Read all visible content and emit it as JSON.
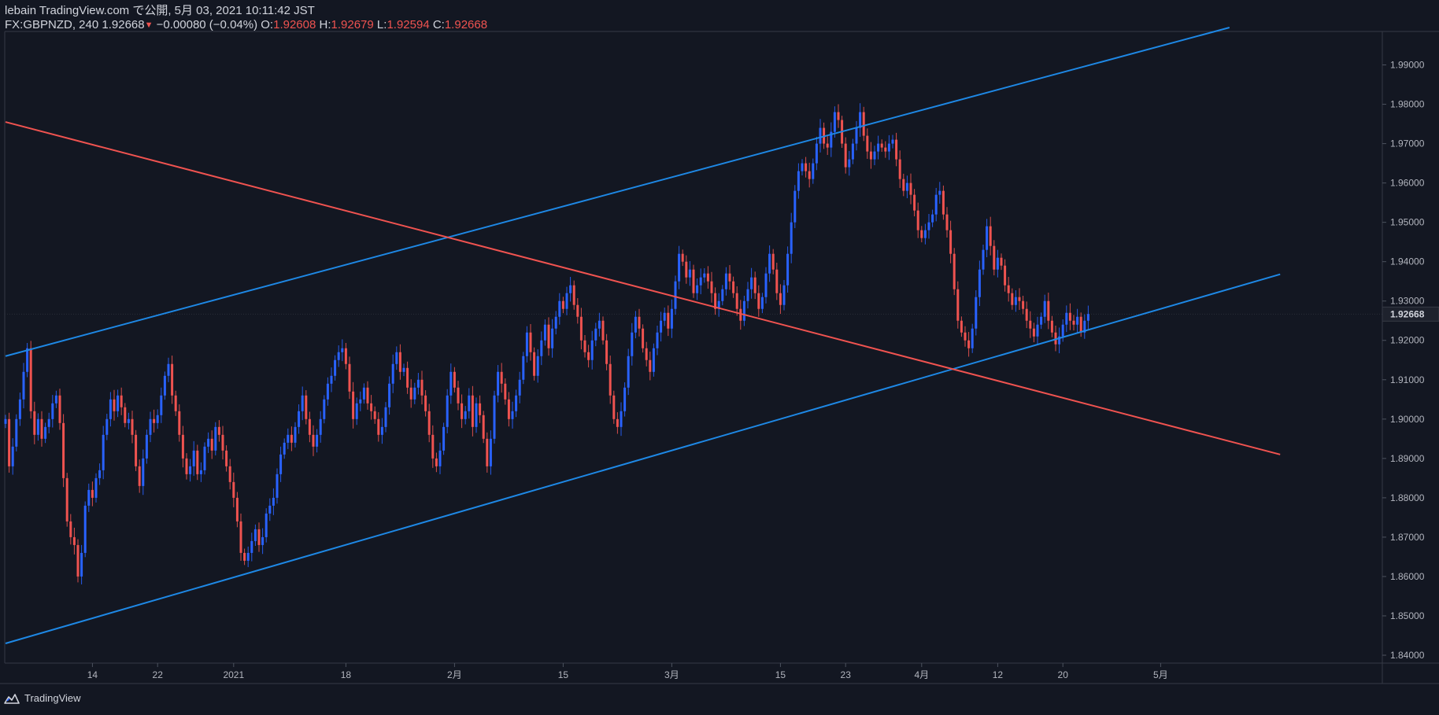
{
  "header": {
    "line1": "lebain TradingView.com で公開, 5月 03, 2021 10:11:42 JST",
    "symbol_prefix": "FX:GBPNZD, 240 1.92668",
    "change_arrow": "▼",
    "change": "−0.00080 (−0.04%)",
    "o_label": "O:",
    "o_value": "1.92608",
    "h_label": "H:",
    "h_value": "1.92679",
    "l_label": "L:",
    "l_value": "1.92594",
    "c_label": "C:",
    "c_value": "1.92668"
  },
  "footer": {
    "brand": "TradingView"
  },
  "colors": {
    "background": "#131722",
    "up": "#2962ff",
    "down": "#ef5350",
    "channel_line": "#1e88e5",
    "resistance_line": "#f05350",
    "text": "#d1d4dc"
  },
  "chart_data": {
    "type": "candlestick",
    "symbol": "FX:GBPNZD",
    "interval": "240",
    "ylim": [
      1.838,
      1.9985
    ],
    "y_ticks": [
      "1.84000",
      "1.85000",
      "1.86000",
      "1.87000",
      "1.88000",
      "1.89000",
      "1.90000",
      "1.91000",
      "1.92000",
      "1.93000",
      "1.94000",
      "1.95000",
      "1.96000",
      "1.97000",
      "1.98000",
      "1.99000"
    ],
    "x_ticks": [
      {
        "label": "14",
        "bar": 24
      },
      {
        "label": "22",
        "bar": 42
      },
      {
        "label": "2021",
        "bar": 63
      },
      {
        "label": "18",
        "bar": 94
      },
      {
        "label": "2月",
        "bar": 124
      },
      {
        "label": "15",
        "bar": 154
      },
      {
        "label": "3月",
        "bar": 184
      },
      {
        "label": "15",
        "bar": 214
      },
      {
        "label": "23",
        "bar": 232
      },
      {
        "label": "4月",
        "bar": 253
      },
      {
        "label": "12",
        "bar": 274
      },
      {
        "label": "20",
        "bar": 292
      },
      {
        "label": "5月",
        "bar": 319
      }
    ],
    "last_price": "1.92668",
    "closes": [
      1.9,
      1.888,
      1.893,
      1.9,
      1.905,
      1.912,
      1.918,
      1.902,
      1.896,
      1.9,
      1.895,
      1.898,
      1.9,
      1.904,
      1.906,
      1.899,
      1.885,
      1.874,
      1.87,
      1.868,
      1.86,
      1.866,
      1.878,
      1.882,
      1.88,
      1.885,
      1.887,
      1.896,
      1.9,
      1.905,
      1.902,
      1.906,
      1.903,
      1.899,
      1.9,
      1.896,
      1.888,
      1.883,
      1.89,
      1.896,
      1.9,
      1.899,
      1.901,
      1.906,
      1.911,
      1.914,
      1.906,
      1.902,
      1.896,
      1.89,
      1.886,
      1.888,
      1.892,
      1.886,
      1.887,
      1.893,
      1.895,
      1.892,
      1.898,
      1.896,
      1.892,
      1.888,
      1.884,
      1.88,
      1.874,
      1.866,
      1.864,
      1.866,
      1.869,
      1.872,
      1.868,
      1.87,
      1.876,
      1.878,
      1.88,
      1.886,
      1.891,
      1.894,
      1.896,
      1.894,
      1.898,
      1.902,
      1.906,
      1.9,
      1.896,
      1.893,
      1.896,
      1.9,
      1.905,
      1.909,
      1.911,
      1.915,
      1.917,
      1.918,
      1.914,
      1.907,
      1.9,
      1.904,
      1.905,
      1.908,
      1.904,
      1.902,
      1.9,
      1.896,
      1.898,
      1.903,
      1.909,
      1.914,
      1.917,
      1.912,
      1.913,
      1.908,
      1.905,
      1.908,
      1.91,
      1.906,
      1.902,
      1.896,
      1.89,
      1.888,
      1.892,
      1.898,
      1.906,
      1.912,
      1.908,
      1.904,
      1.9,
      1.902,
      1.906,
      1.898,
      1.904,
      1.901,
      1.895,
      1.888,
      1.895,
      1.906,
      1.912,
      1.909,
      1.905,
      1.9,
      1.902,
      1.906,
      1.91,
      1.916,
      1.922,
      1.917,
      1.911,
      1.916,
      1.92,
      1.924,
      1.918,
      1.923,
      1.926,
      1.93,
      1.928,
      1.932,
      1.934,
      1.929,
      1.926,
      1.92,
      1.917,
      1.915,
      1.92,
      1.923,
      1.925,
      1.92,
      1.914,
      1.906,
      1.9,
      1.898,
      1.902,
      1.908,
      1.916,
      1.922,
      1.926,
      1.923,
      1.918,
      1.915,
      1.912,
      1.918,
      1.922,
      1.925,
      1.927,
      1.923,
      1.928,
      1.935,
      1.942,
      1.94,
      1.936,
      1.938,
      1.932,
      1.934,
      1.936,
      1.937,
      1.935,
      1.932,
      1.928,
      1.93,
      1.933,
      1.937,
      1.935,
      1.932,
      1.928,
      1.925,
      1.93,
      1.933,
      1.936,
      1.932,
      1.928,
      1.931,
      1.937,
      1.942,
      1.938,
      1.932,
      1.929,
      1.934,
      1.942,
      1.95,
      1.958,
      1.963,
      1.965,
      1.963,
      1.961,
      1.965,
      1.97,
      1.974,
      1.97,
      1.969,
      1.973,
      1.978,
      1.976,
      1.97,
      1.964,
      1.966,
      1.97,
      1.974,
      1.978,
      1.972,
      1.968,
      1.966,
      1.968,
      1.97,
      1.969,
      1.968,
      1.97,
      1.971,
      1.966,
      1.961,
      1.958,
      1.96,
      1.957,
      1.953,
      1.948,
      1.946,
      1.948,
      1.95,
      1.952,
      1.957,
      1.958,
      1.952,
      1.948,
      1.942,
      1.933,
      1.925,
      1.922,
      1.92,
      1.918,
      1.923,
      1.931,
      1.938,
      1.943,
      1.949,
      1.944,
      1.938,
      1.941,
      1.939,
      1.934,
      1.932,
      1.929,
      1.931,
      1.93,
      1.928,
      1.925,
      1.923,
      1.921,
      1.924,
      1.926,
      1.93,
      1.925,
      1.922,
      1.919,
      1.921,
      1.924,
      1.927,
      1.925,
      1.924,
      1.926,
      1.922,
      1.925,
      1.9267
    ],
    "trendlines": [
      {
        "name": "channel-upper",
        "color": "blue",
        "p1": {
          "bar": 0,
          "price": 1.916
        },
        "p2": {
          "bar": 338,
          "price": 1.9995
        }
      },
      {
        "name": "channel-lower",
        "color": "blue",
        "p1": {
          "bar": 0,
          "price": 1.843
        },
        "p2": {
          "bar": 352,
          "price": 1.9368
        }
      },
      {
        "name": "descending-resistance",
        "color": "red",
        "p1": {
          "bar": 0,
          "price": 1.9755
        },
        "p2": {
          "bar": 352,
          "price": 1.891
        }
      }
    ]
  }
}
